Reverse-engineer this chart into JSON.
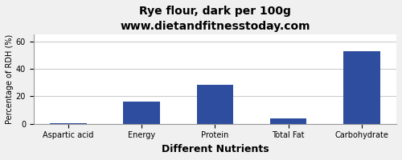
{
  "title": "Rye flour, dark per 100g",
  "subtitle": "www.dietandfitnesstoday.com",
  "xlabel": "Different Nutrients",
  "ylabel": "Percentage of RDH (%)",
  "categories": [
    "Aspartic acid",
    "Energy",
    "Protein",
    "Total Fat",
    "Carbohydrate"
  ],
  "values": [
    0.3,
    16.0,
    28.5,
    4.0,
    53.0
  ],
  "bar_color": "#2e4d9e",
  "ylim": [
    0,
    65
  ],
  "yticks": [
    0,
    20,
    40,
    60
  ],
  "background_color": "#f0f0f0",
  "plot_bg_color": "#ffffff",
  "title_fontsize": 10,
  "subtitle_fontsize": 8,
  "xlabel_fontsize": 9,
  "ylabel_fontsize": 7,
  "tick_fontsize": 7,
  "grid_color": "#cccccc"
}
